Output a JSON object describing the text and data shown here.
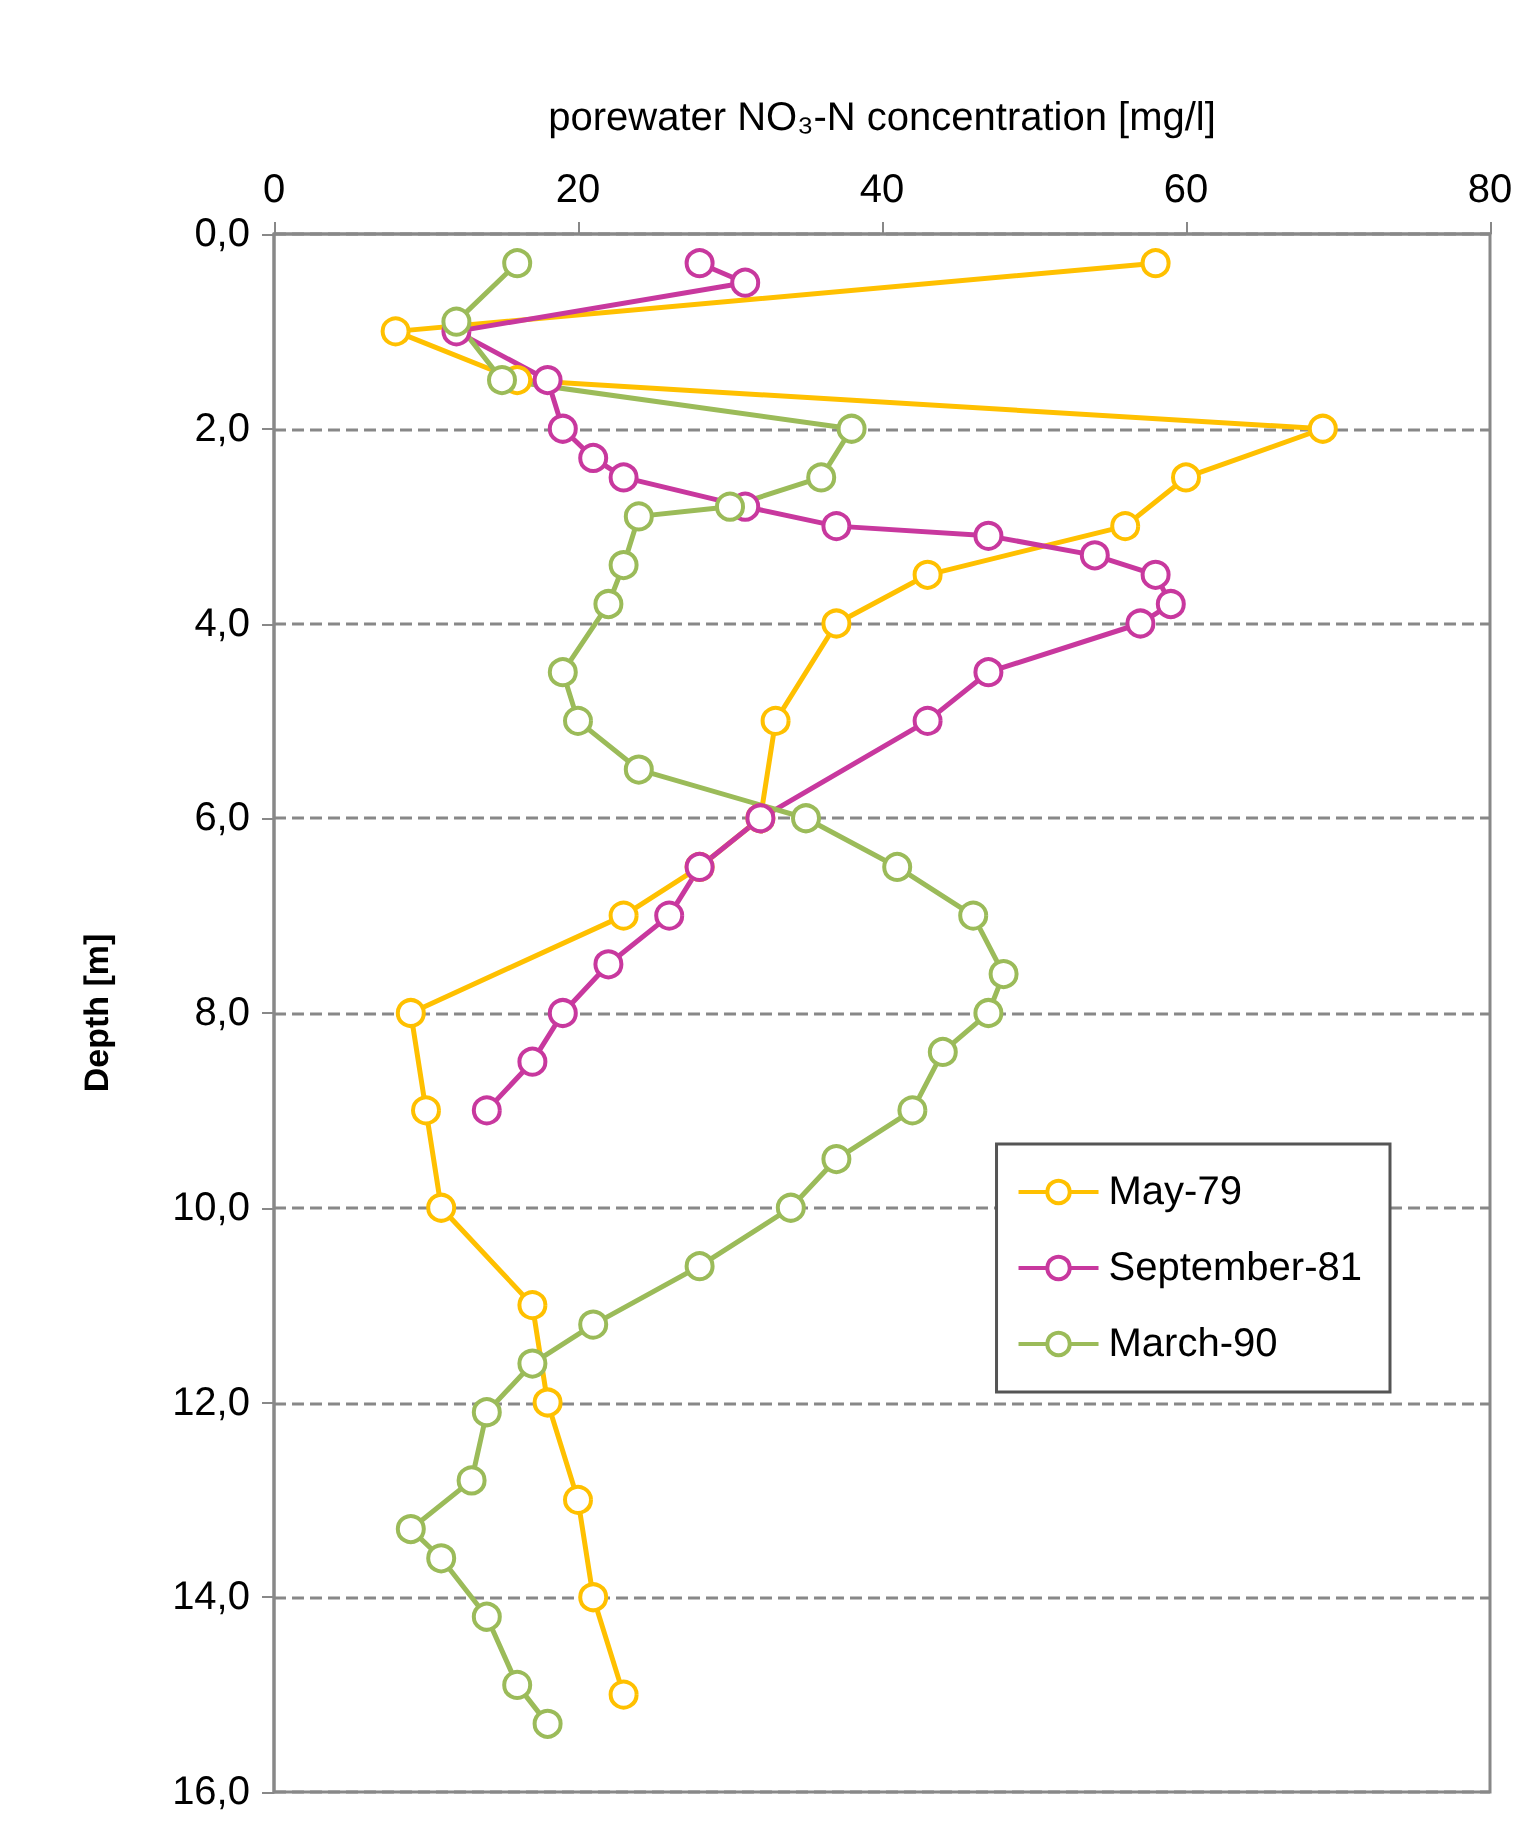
{
  "chart_data": {
    "type": "line",
    "xlabel": "porewater NO₃-N concentration [mg/l]",
    "ylabel": "Depth [m]",
    "xlim": [
      0,
      80
    ],
    "xticks": [
      0,
      20,
      40,
      60,
      80
    ],
    "ylim": [
      16,
      0
    ],
    "yticks": [
      {
        "value": 0,
        "label": "0,0"
      },
      {
        "value": 2,
        "label": "2,0"
      },
      {
        "value": 4,
        "label": "4,0"
      },
      {
        "value": 6,
        "label": "6,0"
      },
      {
        "value": 8,
        "label": "8,0"
      },
      {
        "value": 10,
        "label": "10,0"
      },
      {
        "value": 12,
        "label": "12,0"
      },
      {
        "value": 14,
        "label": "14,0"
      },
      {
        "value": 16,
        "label": "16,0"
      }
    ],
    "grid": "y",
    "legend": "bottom right",
    "marker": "circle",
    "line_style": "solid",
    "series": [
      {
        "name": "May-79",
        "color": "#ffc000",
        "x": [
          58,
          8,
          16,
          69,
          60,
          56,
          43,
          37,
          33,
          32,
          28,
          23,
          9,
          10,
          11,
          17,
          18,
          20,
          21,
          23
        ],
        "values": [
          0.3,
          1.0,
          1.5,
          2.0,
          2.5,
          3.0,
          3.5,
          4.0,
          5.0,
          6.0,
          6.5,
          7.0,
          8.0,
          9.0,
          10.0,
          11.0,
          12.0,
          13.0,
          14.0,
          15.0
        ]
      },
      {
        "name": "September-81",
        "color": "#c8389e",
        "x": [
          28,
          31,
          12,
          18,
          19,
          21,
          23,
          31,
          37,
          47,
          54,
          58,
          59,
          57,
          47,
          43,
          32,
          28,
          26,
          22,
          19,
          17,
          14
        ],
        "values": [
          0.3,
          0.5,
          1.0,
          1.5,
          2.0,
          2.3,
          2.5,
          2.8,
          3.0,
          3.1,
          3.3,
          3.5,
          3.8,
          4.0,
          4.5,
          5.0,
          6.0,
          6.5,
          7.0,
          7.5,
          8.0,
          8.5,
          9.0
        ]
      },
      {
        "name": "March-90",
        "color": "#9bbb59",
        "x": [
          16,
          12,
          15,
          38,
          36,
          30,
          24,
          23,
          22,
          19,
          20,
          24,
          35,
          41,
          46,
          48,
          47,
          44,
          42,
          37,
          34,
          28,
          21,
          17,
          14,
          13,
          9,
          11,
          14,
          16,
          18
        ],
        "values": [
          0.3,
          0.9,
          1.5,
          2.0,
          2.5,
          2.8,
          2.9,
          3.4,
          3.8,
          4.5,
          5.0,
          5.5,
          6.0,
          6.5,
          7.0,
          7.6,
          8.0,
          8.4,
          9.0,
          9.5,
          10.0,
          10.6,
          11.2,
          11.6,
          12.1,
          12.8,
          13.3,
          13.6,
          14.2,
          14.9,
          15.3
        ]
      }
    ]
  }
}
